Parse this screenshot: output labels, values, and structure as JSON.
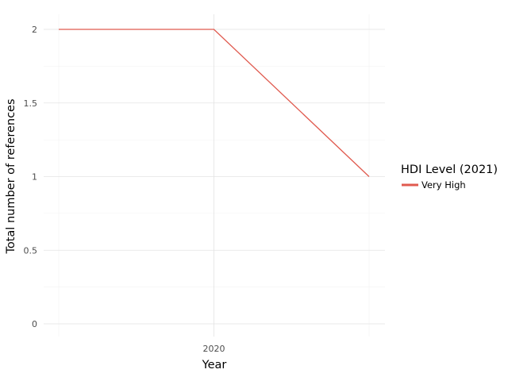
{
  "chart_data": {
    "type": "line",
    "title": "",
    "xlabel": "Year",
    "ylabel": "Total number of references",
    "x_tick_labels": [
      "2020"
    ],
    "y_tick_labels": [
      "0",
      "0.5",
      "1",
      "1.5",
      "2"
    ],
    "xlim": [
      2019,
      2021
    ],
    "ylim": [
      0,
      2
    ],
    "grid": true,
    "legend": {
      "title": "HDI Level (2021)",
      "placement": "right"
    },
    "series": [
      {
        "name": "Very High",
        "color": "#e05a4f",
        "x": [
          2019,
          2020,
          2021
        ],
        "y": [
          2,
          2,
          1
        ]
      }
    ]
  }
}
